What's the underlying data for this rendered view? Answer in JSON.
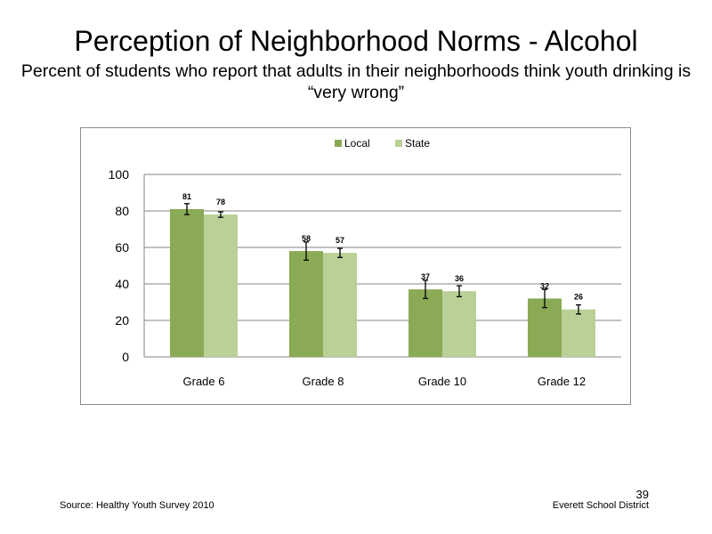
{
  "slide": {
    "title": "Perception  of Neighborhood  Norms - Alcohol",
    "subtitle": "Percent of students  who report that adults in their neighborhoods think youth drinking  is “very wrong”",
    "source": "Source: Healthy Youth Survey 2010",
    "district": "Everett School District",
    "page_number": "39"
  },
  "chart_data": {
    "type": "bar",
    "categories": [
      "Grade 6",
      "Grade 8",
      "Grade 10",
      "Grade 12"
    ],
    "series": [
      {
        "name": "Local",
        "color": "#8aaa55",
        "values": [
          81,
          58,
          37,
          32
        ],
        "error": [
          3,
          5,
          5,
          5
        ]
      },
      {
        "name": "State",
        "color": "#b9d096",
        "values": [
          78,
          57,
          36,
          26
        ],
        "error": [
          1.5,
          2.5,
          3,
          2.5
        ]
      }
    ],
    "ylim": [
      0,
      100
    ],
    "yticks": [
      0,
      20,
      40,
      60,
      80,
      100
    ],
    "grid": true,
    "legend_position": "top-center"
  }
}
